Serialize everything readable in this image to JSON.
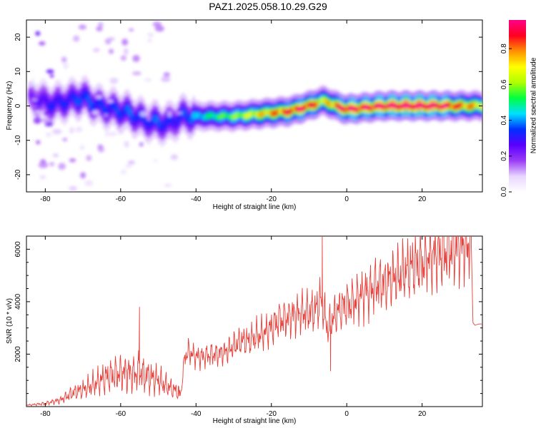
{
  "title": "PAZ1.2025.058.10.29.G29",
  "chart_data": [
    {
      "type": "heatmap",
      "title": "PAZ1.2025.058.10.29.G29",
      "xlabel": "Height of straight line (km)",
      "ylabel": "Frequency (Hz)",
      "xlim": [
        -85,
        36
      ],
      "ylim": [
        -25,
        25
      ],
      "xticks": [
        -80,
        -60,
        -40,
        -20,
        0,
        20
      ],
      "yticks": [
        -20,
        -10,
        0,
        10,
        20
      ],
      "colorbar": {
        "label": "Normalized spectral amplitude",
        "range": [
          0,
          0.96
        ],
        "ticks": [
          "0.0",
          "0.2",
          "0.4",
          "0.6",
          "0.8"
        ],
        "colormap": [
          "#ffffff",
          "#e8d6ff",
          "#9a3cf5",
          "#5a00ff",
          "#0030ff",
          "#00e0ff",
          "#00ff40",
          "#b0ff00",
          "#ffff00",
          "#ff9000",
          "#ff0020",
          "#ff0088"
        ]
      },
      "ridge": {
        "x": [
          -83,
          -78,
          -74,
          -70,
          -66,
          -62,
          -58,
          -54,
          -50,
          -47,
          -44,
          -40,
          -35,
          -30,
          -25,
          -20,
          -15,
          -10,
          -6,
          -3,
          0,
          5,
          10,
          15,
          20,
          25,
          30,
          35
        ],
        "freq": [
          2,
          0.5,
          1.5,
          2.5,
          0,
          -1,
          -2,
          -4,
          -5,
          -5,
          -3,
          -3,
          -3,
          -3,
          -2.5,
          -2,
          -1.5,
          0,
          1.5,
          0,
          -1,
          -0.5,
          0,
          0,
          0,
          0,
          0,
          0
        ],
        "amplitude": [
          0.12,
          0.2,
          0.2,
          0.25,
          0.22,
          0.22,
          0.25,
          0.22,
          0.25,
          0.2,
          0.22,
          0.3,
          0.4,
          0.45,
          0.55,
          0.65,
          0.75,
          0.8,
          0.55,
          0.7,
          0.85,
          0.8,
          0.85,
          0.9,
          0.9,
          0.85,
          0.7,
          0.6
        ]
      }
    },
    {
      "type": "line",
      "xlabel": "Height of straight line (km)",
      "ylabel": "SNR (10 * v/v)",
      "xlim": [
        -85,
        36
      ],
      "ylim": [
        0,
        6500
      ],
      "xticks": [
        -80,
        -60,
        -40,
        -20,
        0,
        20
      ],
      "yticks": [
        2000,
        4000,
        6000
      ],
      "color": "#e8403a",
      "series": [
        {
          "x": [
            -85,
            -80,
            -76,
            -73,
            -70,
            -67,
            -64,
            -62,
            -60,
            -58,
            -56,
            -55,
            -54,
            -52,
            -50,
            -48,
            -46,
            -44,
            -43,
            -42,
            -40,
            -38,
            -36,
            -34,
            -32,
            -30,
            -28,
            -26,
            -24,
            -22,
            -20,
            -18,
            -16,
            -14,
            -12,
            -10,
            -8,
            -7,
            -6,
            -5,
            -4,
            -2,
            0,
            2,
            4,
            6,
            8,
            10,
            12,
            14,
            16,
            18,
            20,
            22,
            24,
            26,
            28,
            30,
            32,
            33,
            33.5,
            34,
            35,
            36
          ],
          "y": [
            50,
            120,
            250,
            500,
            650,
            850,
            1100,
            1200,
            1300,
            1300,
            1250,
            1400,
            1200,
            1100,
            1000,
            800,
            650,
            500,
            1900,
            2100,
            1900,
            1900,
            2000,
            2000,
            2100,
            2300,
            2500,
            2500,
            2700,
            2800,
            3000,
            3300,
            3350,
            3500,
            3600,
            3600,
            3700,
            4100,
            3600,
            2900,
            3300,
            3700,
            3900,
            4000,
            4300,
            4400,
            4700,
            4700,
            4900,
            5000,
            5200,
            5400,
            5500,
            5700,
            5800,
            5900,
            6000,
            6100,
            6150,
            6200,
            3200,
            3150,
            3150,
            3150
          ]
        }
      ]
    }
  ]
}
